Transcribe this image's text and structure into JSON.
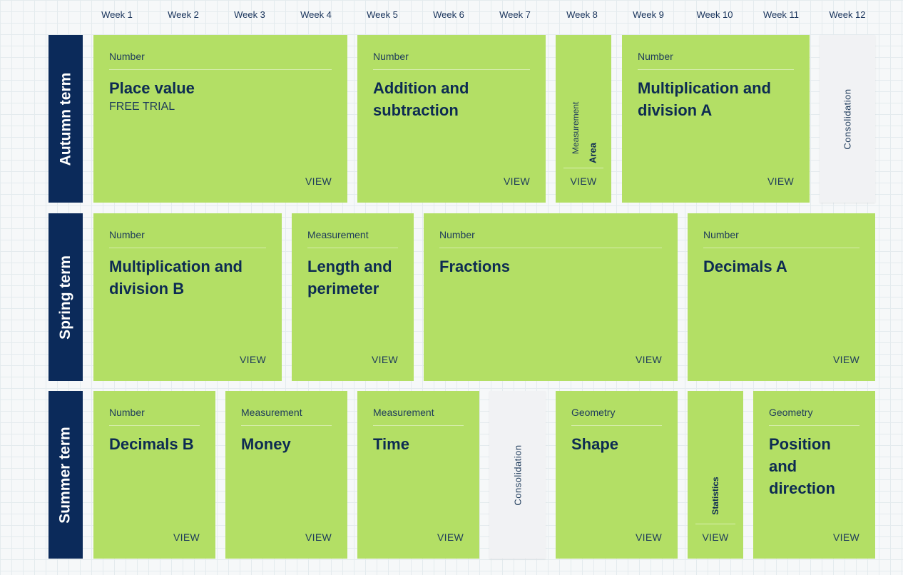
{
  "weeks": [
    "Week 1",
    "Week 2",
    "Week 3",
    "Week 4",
    "Week 5",
    "Week 6",
    "Week 7",
    "Week 8",
    "Week 9",
    "Week 10",
    "Week 11",
    "Week 12"
  ],
  "terms": [
    "Autumn term",
    "Spring term",
    "Summer term"
  ],
  "view_label": "VIEW",
  "consolidation_label": "Consolidation",
  "autumn": {
    "place_value": {
      "category": "Number",
      "title": "Place value",
      "subtitle": "FREE TRIAL"
    },
    "addition": {
      "category": "Number",
      "title": "Addition and subtraction"
    },
    "area": {
      "category": "Measurement",
      "title": "Area"
    },
    "mult_a": {
      "category": "Number",
      "title": "Multiplication and division A"
    }
  },
  "spring": {
    "mult_b": {
      "category": "Number",
      "title": "Multiplication and division B"
    },
    "length": {
      "category": "Measurement",
      "title": "Length and perimeter"
    },
    "fractions": {
      "category": "Number",
      "title": "Fractions"
    },
    "decimals_a": {
      "category": "Number",
      "title": "Decimals A"
    }
  },
  "summer": {
    "decimals_b": {
      "category": "Number",
      "title": "Decimals B"
    },
    "money": {
      "category": "Measurement",
      "title": "Money"
    },
    "time": {
      "category": "Measurement",
      "title": "Time"
    },
    "shape": {
      "category": "Geometry",
      "title": "Shape"
    },
    "statistics": {
      "title": "Statistics"
    },
    "position": {
      "category": "Geometry",
      "title": "Position and direction"
    }
  },
  "colors": {
    "card": "#b3df65",
    "term": "#0b2a5a",
    "consolidation": "#f1f2f4"
  }
}
